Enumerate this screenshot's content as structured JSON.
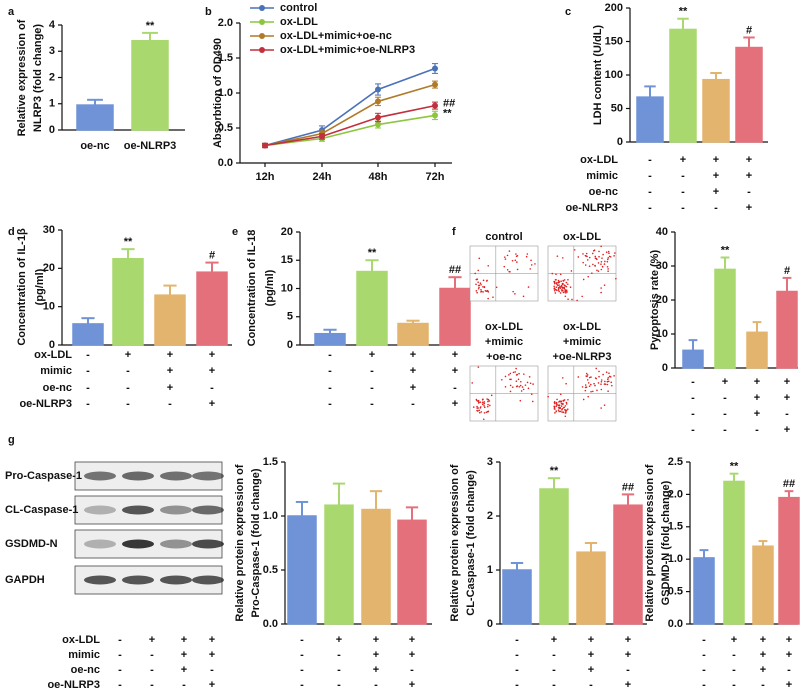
{
  "chart_data": [
    {
      "type": "bar",
      "panel": "a",
      "categories": [
        "oe-nc",
        "oe-NLRP3"
      ],
      "values": [
        0.95,
        3.4
      ],
      "errors": [
        0.2,
        0.3
      ],
      "colors": [
        "#6f93d6",
        "#a8d86e"
      ],
      "ylabel": [
        "Relative expression of",
        "NLRP3 (fold change)"
      ],
      "ylim": [
        0,
        4
      ],
      "yticks": [
        0,
        1,
        2,
        3,
        4
      ],
      "annotations": [
        {
          "index": 1,
          "text": "**"
        }
      ]
    },
    {
      "type": "line",
      "panel": "b",
      "x": [
        "12h",
        "24h",
        "48h",
        "72h"
      ],
      "ylabel": [
        "Absorbtion of OD490"
      ],
      "ylim": [
        0,
        2
      ],
      "yticks": [
        {
          "value": 0,
          "label": "0.0"
        },
        {
          "value": 0.5,
          "label": "0.5"
        },
        {
          "value": 1,
          "label": "1.0"
        },
        {
          "value": 1.5,
          "label": "1.5"
        },
        {
          "value": 2,
          "label": "2.0"
        }
      ],
      "series": [
        {
          "name": "control",
          "color": "#4a72b8",
          "values": [
            0.25,
            0.47,
            1.05,
            1.35
          ],
          "errors": [
            0.03,
            0.06,
            0.08,
            0.07
          ]
        },
        {
          "name": "ox-LDL",
          "color": "#8cc63f",
          "values": [
            0.25,
            0.35,
            0.55,
            0.68
          ],
          "errors": [
            0.03,
            0.04,
            0.05,
            0.06
          ]
        },
        {
          "name": "ox-LDL+mimic+oe-nc",
          "color": "#b07a2a",
          "values": [
            0.25,
            0.42,
            0.88,
            1.12
          ],
          "errors": [
            0.03,
            0.05,
            0.06,
            0.05
          ]
        },
        {
          "name": "ox-LDL+mimic+oe-NLRP3",
          "color": "#c0303e",
          "values": [
            0.25,
            0.38,
            0.65,
            0.82
          ],
          "errors": [
            0.03,
            0.04,
            0.06,
            0.05
          ]
        }
      ],
      "annotations": [
        {
          "series": 3,
          "text": "##"
        },
        {
          "series": 1,
          "text": "**"
        }
      ]
    },
    {
      "type": "bar",
      "panel": "c",
      "values": [
        67,
        168,
        93,
        141
      ],
      "errors": [
        16,
        16,
        10,
        15
      ],
      "colors": [
        "#6f93d6",
        "#a8d86e",
        "#e2b46e",
        "#e4707c"
      ],
      "ylabel": [
        "LDH content (U/dL)"
      ],
      "ylim": [
        0,
        200
      ],
      "yticks": [
        0,
        50,
        100,
        150,
        200
      ],
      "annotations": [
        {
          "index": 1,
          "text": "**"
        },
        {
          "index": 3,
          "text": "#"
        }
      ],
      "condition_labels": [
        "ox-LDL",
        "mimic",
        "oe-nc",
        "oe-NLRP3"
      ],
      "condition_signs": [
        [
          "-",
          "+",
          "+",
          "+"
        ],
        [
          "-",
          "-",
          "+",
          "+"
        ],
        [
          "-",
          "-",
          "+",
          "-"
        ],
        [
          "-",
          "-",
          "-",
          "+"
        ]
      ]
    },
    {
      "type": "bar",
      "panel": "d",
      "values": [
        5.5,
        22.5,
        13,
        19
      ],
      "errors": [
        1.5,
        2.5,
        2.5,
        2.5
      ],
      "colors": [
        "#6f93d6",
        "#a8d86e",
        "#e2b46e",
        "#e4707c"
      ],
      "ylabel": [
        "Concentration of IL-1β",
        "(pg/ml)"
      ],
      "ylim": [
        0,
        30
      ],
      "yticks": [
        0,
        10,
        20,
        30
      ],
      "annotations": [
        {
          "index": 1,
          "text": "**"
        },
        {
          "index": 3,
          "text": "#"
        }
      ],
      "condition_labels": [
        "ox-LDL",
        "mimic",
        "oe-nc",
        "oe-NLRP3"
      ],
      "condition_signs": [
        [
          "-",
          "+",
          "+",
          "+"
        ],
        [
          "-",
          "-",
          "+",
          "+"
        ],
        [
          "-",
          "-",
          "+",
          "-"
        ],
        [
          "-",
          "-",
          "-",
          "+"
        ]
      ]
    },
    {
      "type": "bar",
      "panel": "e",
      "values": [
        2,
        13,
        3.8,
        10
      ],
      "errors": [
        0.7,
        2,
        0.5,
        2
      ],
      "colors": [
        "#6f93d6",
        "#a8d86e",
        "#e2b46e",
        "#e4707c"
      ],
      "ylabel": [
        "Concentration of IL-18",
        "(pg/ml)"
      ],
      "ylim": [
        0,
        20
      ],
      "yticks": [
        0,
        5,
        10,
        15,
        20
      ],
      "annotations": [
        {
          "index": 1,
          "text": "**"
        },
        {
          "index": 3,
          "text": "##"
        }
      ],
      "condition_signs": [
        [
          "-",
          "+",
          "+",
          "+"
        ],
        [
          "-",
          "-",
          "+",
          "+"
        ],
        [
          "-",
          "-",
          "+",
          "-"
        ],
        [
          "-",
          "-",
          "-",
          "+"
        ]
      ]
    },
    {
      "type": "flow",
      "panel": "f",
      "image_labels": [
        [
          "control"
        ],
        [
          "ox-LDL"
        ],
        [
          "ox-LDL",
          "+mimic",
          "+oe-nc"
        ],
        [
          "ox-LDL",
          "+mimic",
          "+oe-NLRP3"
        ]
      ]
    },
    {
      "type": "bar",
      "values": [
        5.2,
        29,
        10.5,
        22.5
      ],
      "errors": [
        3,
        3.5,
        3,
        4
      ],
      "colors": [
        "#6f93d6",
        "#a8d86e",
        "#e2b46e",
        "#e4707c"
      ],
      "ylabel": [
        "Pyroptosis rate (%)"
      ],
      "ylim": [
        0,
        40
      ],
      "yticks": [
        0,
        10,
        20,
        30,
        40
      ],
      "annotations": [
        {
          "index": 1,
          "text": "**"
        },
        {
          "index": 3,
          "text": "#"
        }
      ],
      "condition_signs": [
        [
          "-",
          "+",
          "+",
          "+"
        ],
        [
          "-",
          "-",
          "+",
          "+"
        ],
        [
          "-",
          "-",
          "+",
          "-"
        ],
        [
          "-",
          "-",
          "-",
          "+"
        ]
      ]
    },
    {
      "type": "blot",
      "panel": "g",
      "bands": [
        "Pro-Caspase-1",
        "CL-Caspase-1",
        "GSDMD-N",
        "GAPDH"
      ],
      "condition_labels": [
        "ox-LDL",
        "mimic",
        "oe-nc",
        "oe-NLRP3"
      ],
      "condition_signs": [
        [
          "-",
          "+",
          "+",
          "+"
        ],
        [
          "-",
          "-",
          "+",
          "+"
        ],
        [
          "-",
          "-",
          "+",
          "-"
        ],
        [
          "-",
          "-",
          "-",
          "+"
        ]
      ]
    },
    {
      "type": "bar",
      "values": [
        1.0,
        1.1,
        1.06,
        0.96
      ],
      "errors": [
        0.13,
        0.2,
        0.17,
        0.12
      ],
      "colors": [
        "#6f93d6",
        "#a8d86e",
        "#e2b46e",
        "#e4707c"
      ],
      "ylabel": [
        "Relative protein expression of",
        "Pro-Caspase-1 (fold change)"
      ],
      "ylim": [
        0,
        1.5
      ],
      "yticks": [
        {
          "value": 0,
          "label": "0.0"
        },
        {
          "value": 0.5,
          "label": "0.5"
        },
        {
          "value": 1,
          "label": "1.0"
        },
        {
          "value": 1.5,
          "label": "1.5"
        }
      ],
      "condition_signs": [
        [
          "-",
          "+",
          "+",
          "+"
        ],
        [
          "-",
          "-",
          "+",
          "+"
        ],
        [
          "-",
          "-",
          "+",
          "-"
        ],
        [
          "-",
          "-",
          "-",
          "+"
        ]
      ]
    },
    {
      "type": "bar",
      "values": [
        1.0,
        2.5,
        1.33,
        2.2
      ],
      "errors": [
        0.13,
        0.2,
        0.17,
        0.2
      ],
      "colors": [
        "#6f93d6",
        "#a8d86e",
        "#e2b46e",
        "#e4707c"
      ],
      "ylabel": [
        "Relative protein expression of",
        "CL-Caspase-1 (fold change)"
      ],
      "ylim": [
        0,
        3
      ],
      "yticks": [
        0,
        1,
        2,
        3
      ],
      "annotations": [
        {
          "index": 1,
          "text": "**"
        },
        {
          "index": 3,
          "text": "##"
        }
      ],
      "condition_signs": [
        [
          "-",
          "+",
          "+",
          "+"
        ],
        [
          "-",
          "-",
          "+",
          "+"
        ],
        [
          "-",
          "-",
          "+",
          "-"
        ],
        [
          "-",
          "-",
          "-",
          "+"
        ]
      ]
    },
    {
      "type": "bar",
      "values": [
        1.02,
        2.2,
        1.2,
        1.95
      ],
      "errors": [
        0.12,
        0.12,
        0.08,
        0.1
      ],
      "colors": [
        "#6f93d6",
        "#a8d86e",
        "#e2b46e",
        "#e4707c"
      ],
      "ylabel": [
        "Relative protein expression of",
        "GSDMD-N (fold change)"
      ],
      "ylim": [
        0,
        2.5
      ],
      "yticks": [
        {
          "value": 0,
          "label": "0.0"
        },
        {
          "value": 0.5,
          "label": "0.5"
        },
        {
          "value": 1,
          "label": "1.0"
        },
        {
          "value": 1.5,
          "label": "1.5"
        },
        {
          "value": 2,
          "label": "2.0"
        },
        {
          "value": 2.5,
          "label": "2.5"
        }
      ],
      "annotations": [
        {
          "index": 1,
          "text": "**"
        },
        {
          "index": 3,
          "text": "##"
        }
      ],
      "condition_signs": [
        [
          "-",
          "+",
          "+",
          "+"
        ],
        [
          "-",
          "-",
          "+",
          "+"
        ],
        [
          "-",
          "-",
          "+",
          "-"
        ],
        [
          "-",
          "-",
          "-",
          "+"
        ]
      ]
    }
  ]
}
